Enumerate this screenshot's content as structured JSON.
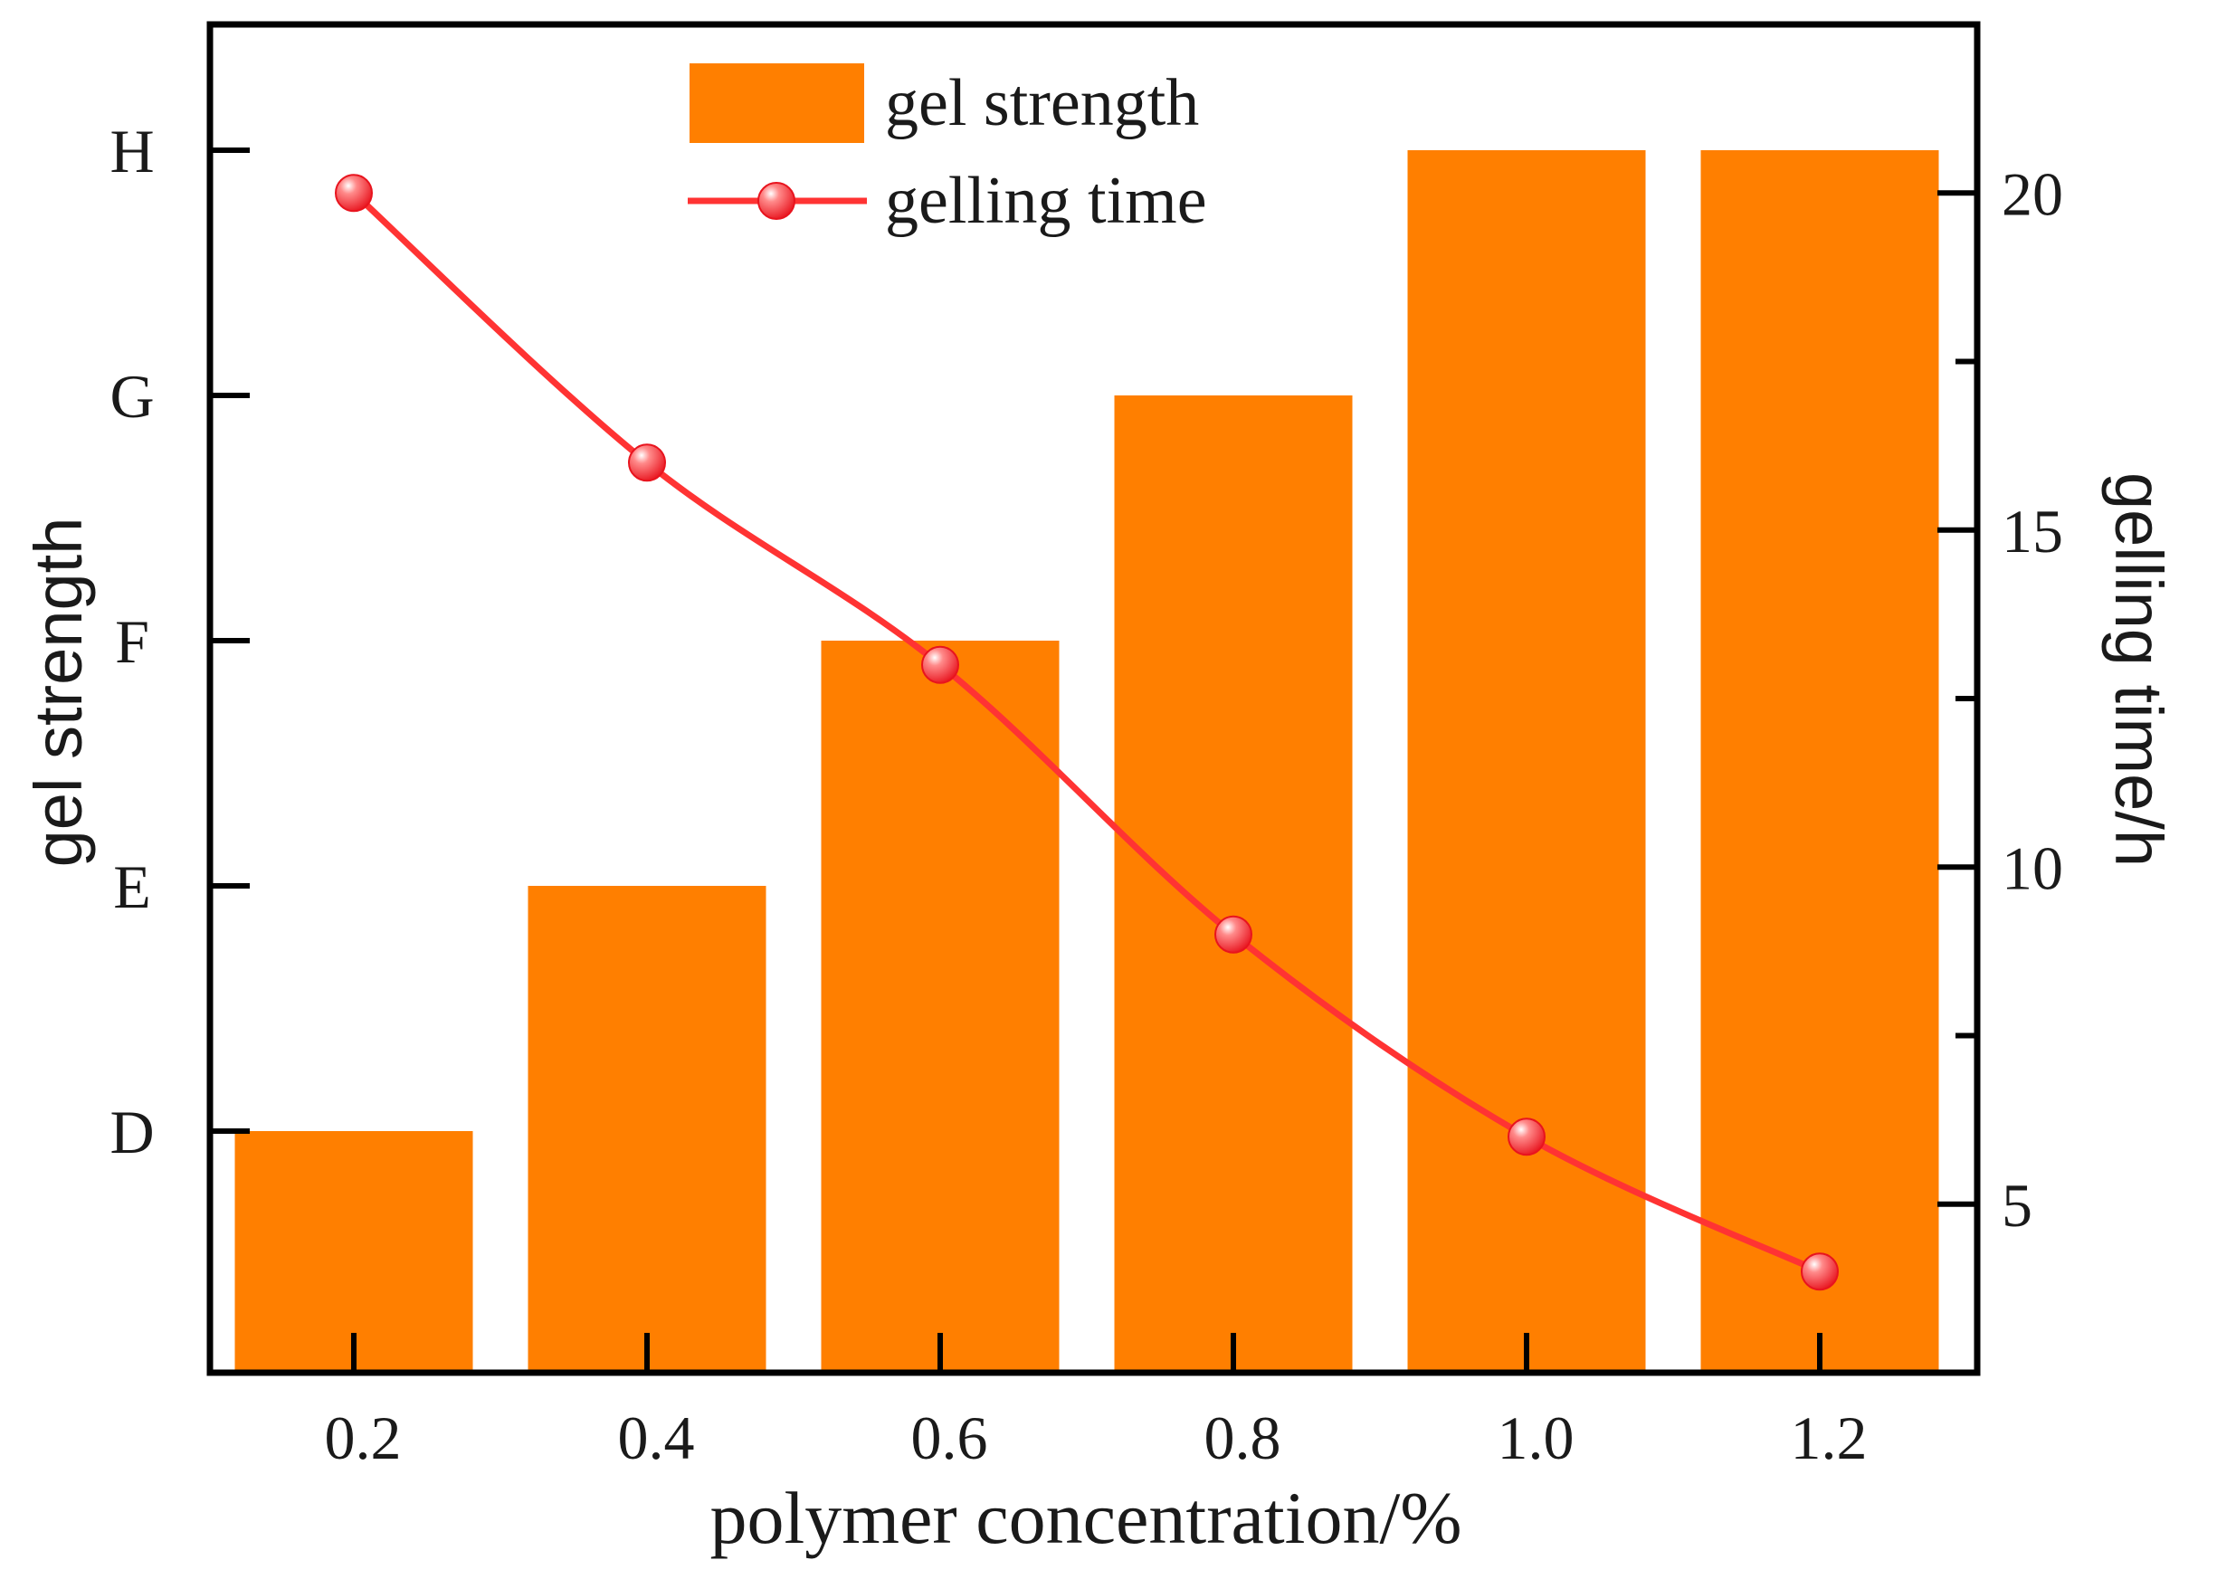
{
  "chart_data": {
    "type": "bar",
    "xlabel": "polymer concentration/%",
    "categories": [
      "0.2",
      "0.4",
      "0.6",
      "0.8",
      "1.0",
      "1.2"
    ],
    "series": [
      {
        "name": "gel strength",
        "type": "bar",
        "axis": "left",
        "values": [
          "D",
          "E",
          "F",
          "G",
          "H",
          "H"
        ],
        "color": "#ff7f00"
      },
      {
        "name": "gelling time",
        "type": "line",
        "axis": "right",
        "values": [
          20,
          16,
          13,
          9,
          6,
          4
        ],
        "color": "#ff3333"
      }
    ],
    "left_axis": {
      "label": "gel strength",
      "ticks": [
        "D",
        "E",
        "F",
        "G",
        "H"
      ]
    },
    "right_axis": {
      "label": "gelling time/h",
      "ticks": [
        5,
        10,
        15,
        20
      ],
      "ylim": [
        2.5,
        22.5
      ]
    },
    "legend": "top-center",
    "grid": false
  }
}
